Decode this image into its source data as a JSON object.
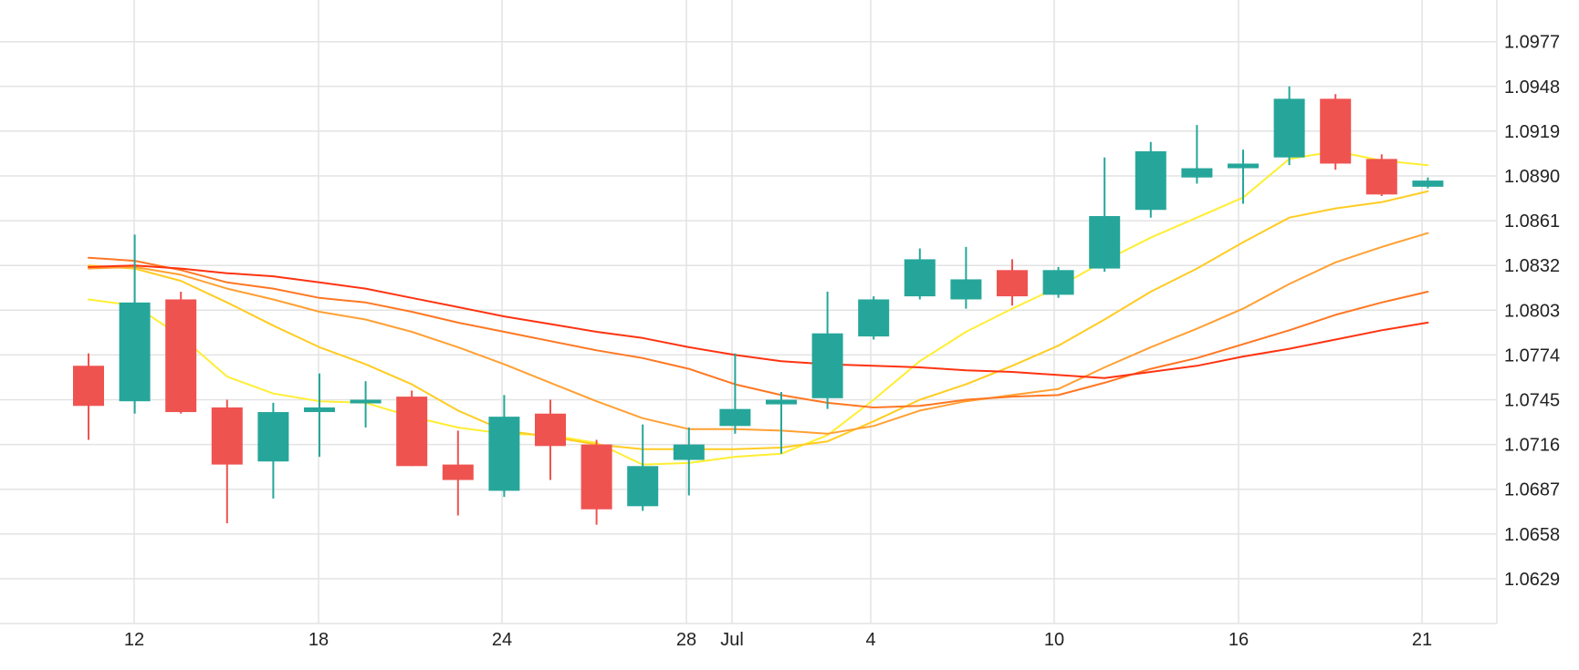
{
  "chart_data": {
    "type": "candlestick",
    "x_tick_labels": [
      "12",
      "18",
      "24",
      "28",
      "Jul",
      "4",
      "10",
      "16",
      "21"
    ],
    "y_tick_labels": [
      "1.0977",
      "1.0948",
      "1.0919",
      "1.0890",
      "1.0861",
      "1.0832",
      "1.0803",
      "1.0774",
      "1.0745",
      "1.0716",
      "1.0687",
      "1.0658",
      "1.0629"
    ],
    "y_ticks": [
      1.0977,
      1.0948,
      1.0919,
      1.089,
      1.0861,
      1.0832,
      1.0803,
      1.0774,
      1.0745,
      1.0716,
      1.0687,
      1.0658,
      1.0629
    ],
    "ylim": [
      1.06,
      1.1004
    ],
    "grid": true,
    "up_color": "#26a69a",
    "down_color": "#ef5350",
    "candles": [
      {
        "date": "Jun 11",
        "open": 1.0767,
        "high": 1.0775,
        "low": 1.0719,
        "close": 1.0741
      },
      {
        "date": "Jun 12",
        "open": 1.0744,
        "high": 1.0852,
        "low": 1.0736,
        "close": 1.0808
      },
      {
        "date": "Jun 13",
        "open": 1.081,
        "high": 1.0815,
        "low": 1.0736,
        "close": 1.0737
      },
      {
        "date": "Jun 14",
        "open": 1.074,
        "high": 1.0745,
        "low": 1.0665,
        "close": 1.0703
      },
      {
        "date": "Jun 17",
        "open": 1.0705,
        "high": 1.0743,
        "low": 1.0681,
        "close": 1.0737
      },
      {
        "date": "Jun 18",
        "open": 1.0737,
        "high": 1.0762,
        "low": 1.0708,
        "close": 1.074
      },
      {
        "date": "Jun 19",
        "open": 1.0744,
        "high": 1.0757,
        "low": 1.0727,
        "close": 1.0745
      },
      {
        "date": "Jun 20",
        "open": 1.0747,
        "high": 1.0751,
        "low": 1.0702,
        "close": 1.0702
      },
      {
        "date": "Jun 21",
        "open": 1.0703,
        "high": 1.0725,
        "low": 1.067,
        "close": 1.0693
      },
      {
        "date": "Jun 24",
        "open": 1.0686,
        "high": 1.0748,
        "low": 1.0682,
        "close": 1.0734
      },
      {
        "date": "Jun 25",
        "open": 1.0736,
        "high": 1.0745,
        "low": 1.0693,
        "close": 1.0715
      },
      {
        "date": "Jun 26",
        "open": 1.0716,
        "high": 1.0719,
        "low": 1.0664,
        "close": 1.0674
      },
      {
        "date": "Jun 27",
        "open": 1.0676,
        "high": 1.0729,
        "low": 1.0673,
        "close": 1.0702
      },
      {
        "date": "Jun 28",
        "open": 1.0706,
        "high": 1.0727,
        "low": 1.0683,
        "close": 1.0716
      },
      {
        "date": "Jul 1",
        "open": 1.0728,
        "high": 1.0775,
        "low": 1.0723,
        "close": 1.0739
      },
      {
        "date": "Jul 2",
        "open": 1.0742,
        "high": 1.075,
        "low": 1.071,
        "close": 1.0745
      },
      {
        "date": "Jul 3",
        "open": 1.0746,
        "high": 1.0815,
        "low": 1.0739,
        "close": 1.0788
      },
      {
        "date": "Jul 4",
        "open": 1.0786,
        "high": 1.0812,
        "low": 1.0784,
        "close": 1.081
      },
      {
        "date": "Jul 5",
        "open": 1.0812,
        "high": 1.0843,
        "low": 1.081,
        "close": 1.0836
      },
      {
        "date": "Jul 8",
        "open": 1.081,
        "high": 1.0844,
        "low": 1.0804,
        "close": 1.0823
      },
      {
        "date": "Jul 9",
        "open": 1.0829,
        "high": 1.0836,
        "low": 1.0806,
        "close": 1.0812
      },
      {
        "date": "Jul 10",
        "open": 1.0813,
        "high": 1.0831,
        "low": 1.0811,
        "close": 1.0829
      },
      {
        "date": "Jul 11",
        "open": 1.083,
        "high": 1.0902,
        "low": 1.0828,
        "close": 1.0864
      },
      {
        "date": "Jul 12",
        "open": 1.0868,
        "high": 1.0912,
        "low": 1.0863,
        "close": 1.0906
      },
      {
        "date": "Jul 15",
        "open": 1.0889,
        "high": 1.0923,
        "low": 1.0885,
        "close": 1.0895
      },
      {
        "date": "Jul 16",
        "open": 1.0895,
        "high": 1.0907,
        "low": 1.0872,
        "close": 1.0898
      },
      {
        "date": "Jul 17",
        "open": 1.0902,
        "high": 1.0948,
        "low": 1.0897,
        "close": 1.094
      },
      {
        "date": "Jul 18",
        "open": 1.094,
        "high": 1.0943,
        "low": 1.0894,
        "close": 1.0898
      },
      {
        "date": "Jul 19",
        "open": 1.0901,
        "high": 1.0904,
        "low": 1.0877,
        "close": 1.0878
      },
      {
        "date": "Jul 22",
        "open": 1.0883,
        "high": 1.0889,
        "low": 1.0882,
        "close": 1.0887
      }
    ],
    "moving_averages": [
      {
        "color": "#ffee33",
        "values": [
          1.081,
          1.0806,
          1.0786,
          1.076,
          1.0749,
          1.0744,
          1.0743,
          1.0734,
          1.0727,
          1.0723,
          1.0722,
          1.0717,
          1.0703,
          1.0704,
          1.0708,
          1.071,
          1.0722,
          1.0745,
          1.077,
          1.0789,
          1.0804,
          1.0818,
          1.0835,
          1.085,
          1.0863,
          1.0876,
          1.0901,
          1.0906,
          1.09,
          1.0897
        ]
      },
      {
        "color": "#ffcc22",
        "values": [
          1.0832,
          1.083,
          1.0822,
          1.0808,
          1.0793,
          1.0779,
          1.0768,
          1.0755,
          1.0738,
          1.0725,
          1.0721,
          1.0716,
          1.0713,
          1.0713,
          1.0713,
          1.0714,
          1.0718,
          1.0731,
          1.0745,
          1.0755,
          1.0767,
          1.078,
          1.0797,
          1.0815,
          1.083,
          1.0847,
          1.0863,
          1.0869,
          1.0873,
          1.088
        ]
      },
      {
        "color": "#ffa033",
        "values": [
          1.083,
          1.0831,
          1.0826,
          1.0817,
          1.081,
          1.0802,
          1.0797,
          1.0789,
          1.0779,
          1.0768,
          1.0756,
          1.0744,
          1.0733,
          1.0726,
          1.0726,
          1.0725,
          1.0723,
          1.0728,
          1.0738,
          1.0744,
          1.0748,
          1.0752,
          1.0766,
          1.0779,
          1.0791,
          1.0804,
          1.082,
          1.0834,
          1.0844,
          1.0853
        ]
      },
      {
        "color": "#ff7722",
        "values": [
          1.0837,
          1.0835,
          1.0829,
          1.0821,
          1.0817,
          1.0811,
          1.0808,
          1.0802,
          1.0795,
          1.0789,
          1.0783,
          1.0777,
          1.0772,
          1.0765,
          1.0755,
          1.0748,
          1.0743,
          1.074,
          1.0741,
          1.0745,
          1.0747,
          1.0748,
          1.0756,
          1.0765,
          1.0772,
          1.0781,
          1.079,
          1.08,
          1.0808,
          1.0815
        ]
      },
      {
        "color": "#ff3311",
        "values": [
          1.0831,
          1.0832,
          1.083,
          1.0827,
          1.0825,
          1.0821,
          1.0817,
          1.0811,
          1.0805,
          1.0799,
          1.0794,
          1.0789,
          1.0785,
          1.0779,
          1.0774,
          1.077,
          1.0768,
          1.0767,
          1.0766,
          1.0764,
          1.0763,
          1.0761,
          1.0759,
          1.0763,
          1.0767,
          1.0773,
          1.0778,
          1.0784,
          1.079,
          1.0795
        ]
      }
    ]
  }
}
